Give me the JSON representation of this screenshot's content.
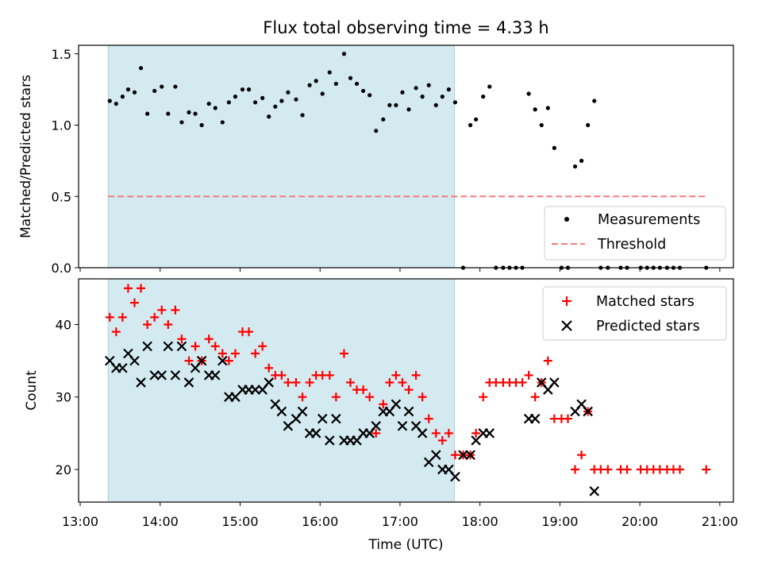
{
  "chart_data": [
    {
      "type": "scatter",
      "title": "Flux total observing time = 4.33 h",
      "xlabel": "",
      "ylabel": "Matched/Predicted stars",
      "xlim": [
        12.98,
        21.17
      ],
      "ylim": [
        0.0,
        1.56
      ],
      "yticks": [
        0.0,
        0.5,
        1.0,
        1.5
      ],
      "ytick_labels": [
        "0.0",
        "0.5",
        "1.0",
        "1.5"
      ],
      "shaded_region": {
        "x_start": 13.35,
        "x_end": 17.68,
        "color": "#d4eaf1"
      },
      "threshold": {
        "name": "Threshold",
        "value": 0.5,
        "x_range": [
          13.35,
          20.83
        ],
        "color": "#f47c7c"
      },
      "legend": {
        "position": "lower-right",
        "entries": [
          "Measurements",
          "Threshold"
        ]
      },
      "series": [
        {
          "name": "Measurements",
          "color": "#000000",
          "points": [
            [
              13.37,
              1.17
            ],
            [
              13.45,
              1.15
            ],
            [
              13.53,
              1.2
            ],
            [
              13.6,
              1.25
            ],
            [
              13.68,
              1.23
            ],
            [
              13.76,
              1.4
            ],
            [
              13.84,
              1.08
            ],
            [
              13.93,
              1.24
            ],
            [
              14.02,
              1.27
            ],
            [
              14.1,
              1.08
            ],
            [
              14.19,
              1.27
            ],
            [
              14.27,
              1.02
            ],
            [
              14.36,
              1.09
            ],
            [
              14.44,
              1.08
            ],
            [
              14.52,
              1.0
            ],
            [
              14.61,
              1.15
            ],
            [
              14.69,
              1.12
            ],
            [
              14.78,
              1.02
            ],
            [
              14.86,
              1.16
            ],
            [
              14.94,
              1.2
            ],
            [
              15.03,
              1.25
            ],
            [
              15.11,
              1.25
            ],
            [
              15.19,
              1.16
            ],
            [
              15.28,
              1.19
            ],
            [
              15.36,
              1.06
            ],
            [
              15.44,
              1.13
            ],
            [
              15.52,
              1.17
            ],
            [
              15.6,
              1.23
            ],
            [
              15.7,
              1.18
            ],
            [
              15.78,
              1.07
            ],
            [
              15.87,
              1.28
            ],
            [
              15.95,
              1.31
            ],
            [
              16.03,
              1.22
            ],
            [
              16.12,
              1.37
            ],
            [
              16.2,
              1.29
            ],
            [
              16.3,
              1.5
            ],
            [
              16.38,
              1.33
            ],
            [
              16.46,
              1.29
            ],
            [
              16.54,
              1.24
            ],
            [
              16.62,
              1.21
            ],
            [
              16.7,
              0.96
            ],
            [
              16.79,
              1.04
            ],
            [
              16.87,
              1.14
            ],
            [
              16.95,
              1.14
            ],
            [
              17.03,
              1.23
            ],
            [
              17.11,
              1.11
            ],
            [
              17.2,
              1.26
            ],
            [
              17.28,
              1.2
            ],
            [
              17.36,
              1.28
            ],
            [
              17.45,
              1.14
            ],
            [
              17.53,
              1.2
            ],
            [
              17.61,
              1.25
            ],
            [
              17.69,
              1.16
            ],
            [
              17.79,
              0.0
            ],
            [
              17.88,
              1.0
            ],
            [
              17.95,
              1.04
            ],
            [
              18.04,
              1.2
            ],
            [
              18.12,
              1.27
            ],
            [
              18.2,
              0.0
            ],
            [
              18.29,
              0.0
            ],
            [
              18.37,
              0.0
            ],
            [
              18.45,
              0.0
            ],
            [
              18.53,
              0.0
            ],
            [
              18.61,
              1.22
            ],
            [
              18.69,
              1.11
            ],
            [
              18.77,
              1.0
            ],
            [
              18.85,
              1.12
            ],
            [
              18.93,
              0.84
            ],
            [
              19.02,
              0.0
            ],
            [
              19.1,
              0.0
            ],
            [
              19.19,
              0.71
            ],
            [
              19.27,
              0.75
            ],
            [
              19.35,
              1.0
            ],
            [
              19.43,
              1.17
            ],
            [
              19.51,
              0.0
            ],
            [
              19.6,
              0.0
            ],
            [
              19.76,
              0.0
            ],
            [
              19.84,
              0.0
            ],
            [
              20.01,
              0.0
            ],
            [
              20.09,
              0.0
            ],
            [
              20.17,
              0.0
            ],
            [
              20.25,
              0.0
            ],
            [
              20.34,
              0.0
            ],
            [
              20.42,
              0.0
            ],
            [
              20.5,
              0.0
            ],
            [
              20.83,
              0.0
            ]
          ]
        }
      ]
    },
    {
      "type": "scatter",
      "title": "",
      "xlabel": "Time (UTC)",
      "ylabel": "Count",
      "xlim": [
        12.98,
        21.17
      ],
      "ylim": [
        15.5,
        46.3
      ],
      "xticks": [
        13,
        14,
        15,
        16,
        17,
        18,
        19,
        20,
        21
      ],
      "xtick_labels": [
        "13:00",
        "14:00",
        "15:00",
        "16:00",
        "17:00",
        "18:00",
        "19:00",
        "20:00",
        "21:00"
      ],
      "yticks": [
        20,
        30,
        40
      ],
      "ytick_labels": [
        "20",
        "30",
        "40"
      ],
      "shaded_region": {
        "x_start": 13.35,
        "x_end": 17.68,
        "color": "#d4eaf1"
      },
      "legend": {
        "position": "upper-right",
        "entries": [
          "Matched stars",
          "Predicted stars"
        ]
      },
      "series": [
        {
          "name": "Matched stars",
          "marker": "plus",
          "color": "#ff0000",
          "points": [
            [
              13.37,
              41
            ],
            [
              13.45,
              39
            ],
            [
              13.53,
              41
            ],
            [
              13.6,
              45
            ],
            [
              13.68,
              43
            ],
            [
              13.76,
              45
            ],
            [
              13.84,
              40
            ],
            [
              13.93,
              41
            ],
            [
              14.02,
              42
            ],
            [
              14.1,
              40
            ],
            [
              14.19,
              42
            ],
            [
              14.27,
              38
            ],
            [
              14.36,
              35
            ],
            [
              14.44,
              37
            ],
            [
              14.52,
              35
            ],
            [
              14.61,
              38
            ],
            [
              14.69,
              37
            ],
            [
              14.78,
              36
            ],
            [
              14.86,
              35
            ],
            [
              14.94,
              36
            ],
            [
              15.03,
              39
            ],
            [
              15.11,
              39
            ],
            [
              15.19,
              36
            ],
            [
              15.28,
              37
            ],
            [
              15.36,
              34
            ],
            [
              15.44,
              33
            ],
            [
              15.52,
              33
            ],
            [
              15.6,
              32
            ],
            [
              15.7,
              32
            ],
            [
              15.78,
              30
            ],
            [
              15.87,
              32
            ],
            [
              15.95,
              33
            ],
            [
              16.03,
              33
            ],
            [
              16.12,
              33
            ],
            [
              16.2,
              30
            ],
            [
              16.3,
              36
            ],
            [
              16.38,
              32
            ],
            [
              16.46,
              31
            ],
            [
              16.54,
              31
            ],
            [
              16.62,
              30
            ],
            [
              16.7,
              25
            ],
            [
              16.79,
              29
            ],
            [
              16.87,
              32
            ],
            [
              16.95,
              33
            ],
            [
              17.03,
              32
            ],
            [
              17.11,
              31
            ],
            [
              17.2,
              33
            ],
            [
              17.28,
              30
            ],
            [
              17.36,
              27
            ],
            [
              17.45,
              25
            ],
            [
              17.53,
              24
            ],
            [
              17.61,
              25
            ],
            [
              17.69,
              22
            ],
            [
              17.79,
              22
            ],
            [
              17.88,
              22
            ],
            [
              17.95,
              25
            ],
            [
              18.04,
              30
            ],
            [
              18.12,
              32
            ],
            [
              18.2,
              32
            ],
            [
              18.29,
              32
            ],
            [
              18.37,
              32
            ],
            [
              18.45,
              32
            ],
            [
              18.53,
              32
            ],
            [
              18.61,
              33
            ],
            [
              18.69,
              30
            ],
            [
              18.77,
              32
            ],
            [
              18.85,
              35
            ],
            [
              18.93,
              27
            ],
            [
              19.02,
              27
            ],
            [
              19.1,
              27
            ],
            [
              19.19,
              20
            ],
            [
              19.27,
              22
            ],
            [
              19.35,
              28
            ],
            [
              19.43,
              20
            ],
            [
              19.51,
              20
            ],
            [
              19.6,
              20
            ],
            [
              19.76,
              20
            ],
            [
              19.84,
              20
            ],
            [
              20.01,
              20
            ],
            [
              20.09,
              20
            ],
            [
              20.17,
              20
            ],
            [
              20.25,
              20
            ],
            [
              20.34,
              20
            ],
            [
              20.42,
              20
            ],
            [
              20.5,
              20
            ],
            [
              20.83,
              20
            ]
          ]
        },
        {
          "name": "Predicted stars",
          "marker": "x",
          "color": "#000000",
          "points": [
            [
              13.37,
              35
            ],
            [
              13.45,
              34
            ],
            [
              13.53,
              34
            ],
            [
              13.6,
              36
            ],
            [
              13.68,
              35
            ],
            [
              13.76,
              32
            ],
            [
              13.84,
              37
            ],
            [
              13.93,
              33
            ],
            [
              14.02,
              33
            ],
            [
              14.1,
              37
            ],
            [
              14.19,
              33
            ],
            [
              14.27,
              37
            ],
            [
              14.36,
              32
            ],
            [
              14.44,
              34
            ],
            [
              14.52,
              35
            ],
            [
              14.61,
              33
            ],
            [
              14.69,
              33
            ],
            [
              14.78,
              35
            ],
            [
              14.86,
              30
            ],
            [
              14.94,
              30
            ],
            [
              15.03,
              31
            ],
            [
              15.11,
              31
            ],
            [
              15.19,
              31
            ],
            [
              15.28,
              31
            ],
            [
              15.36,
              32
            ],
            [
              15.44,
              29
            ],
            [
              15.52,
              28
            ],
            [
              15.6,
              26
            ],
            [
              15.7,
              27
            ],
            [
              15.78,
              28
            ],
            [
              15.87,
              25
            ],
            [
              15.95,
              25
            ],
            [
              16.03,
              27
            ],
            [
              16.12,
              24
            ],
            [
              16.2,
              27
            ],
            [
              16.3,
              24
            ],
            [
              16.38,
              24
            ],
            [
              16.46,
              24
            ],
            [
              16.54,
              25
            ],
            [
              16.62,
              25
            ],
            [
              16.7,
              26
            ],
            [
              16.79,
              28
            ],
            [
              16.87,
              28
            ],
            [
              16.95,
              29
            ],
            [
              17.03,
              26
            ],
            [
              17.11,
              28
            ],
            [
              17.2,
              26
            ],
            [
              17.28,
              25
            ],
            [
              17.36,
              21
            ],
            [
              17.45,
              22
            ],
            [
              17.53,
              20
            ],
            [
              17.61,
              20
            ],
            [
              17.69,
              19
            ],
            [
              17.79,
              22
            ],
            [
              17.88,
              22
            ],
            [
              17.95,
              24
            ],
            [
              18.04,
              25
            ],
            [
              18.12,
              25
            ],
            [
              18.61,
              27
            ],
            [
              18.69,
              27
            ],
            [
              18.77,
              32
            ],
            [
              18.85,
              31
            ],
            [
              18.93,
              32
            ],
            [
              19.19,
              28
            ],
            [
              19.27,
              29
            ],
            [
              19.35,
              28
            ],
            [
              19.43,
              17
            ]
          ]
        }
      ]
    }
  ]
}
